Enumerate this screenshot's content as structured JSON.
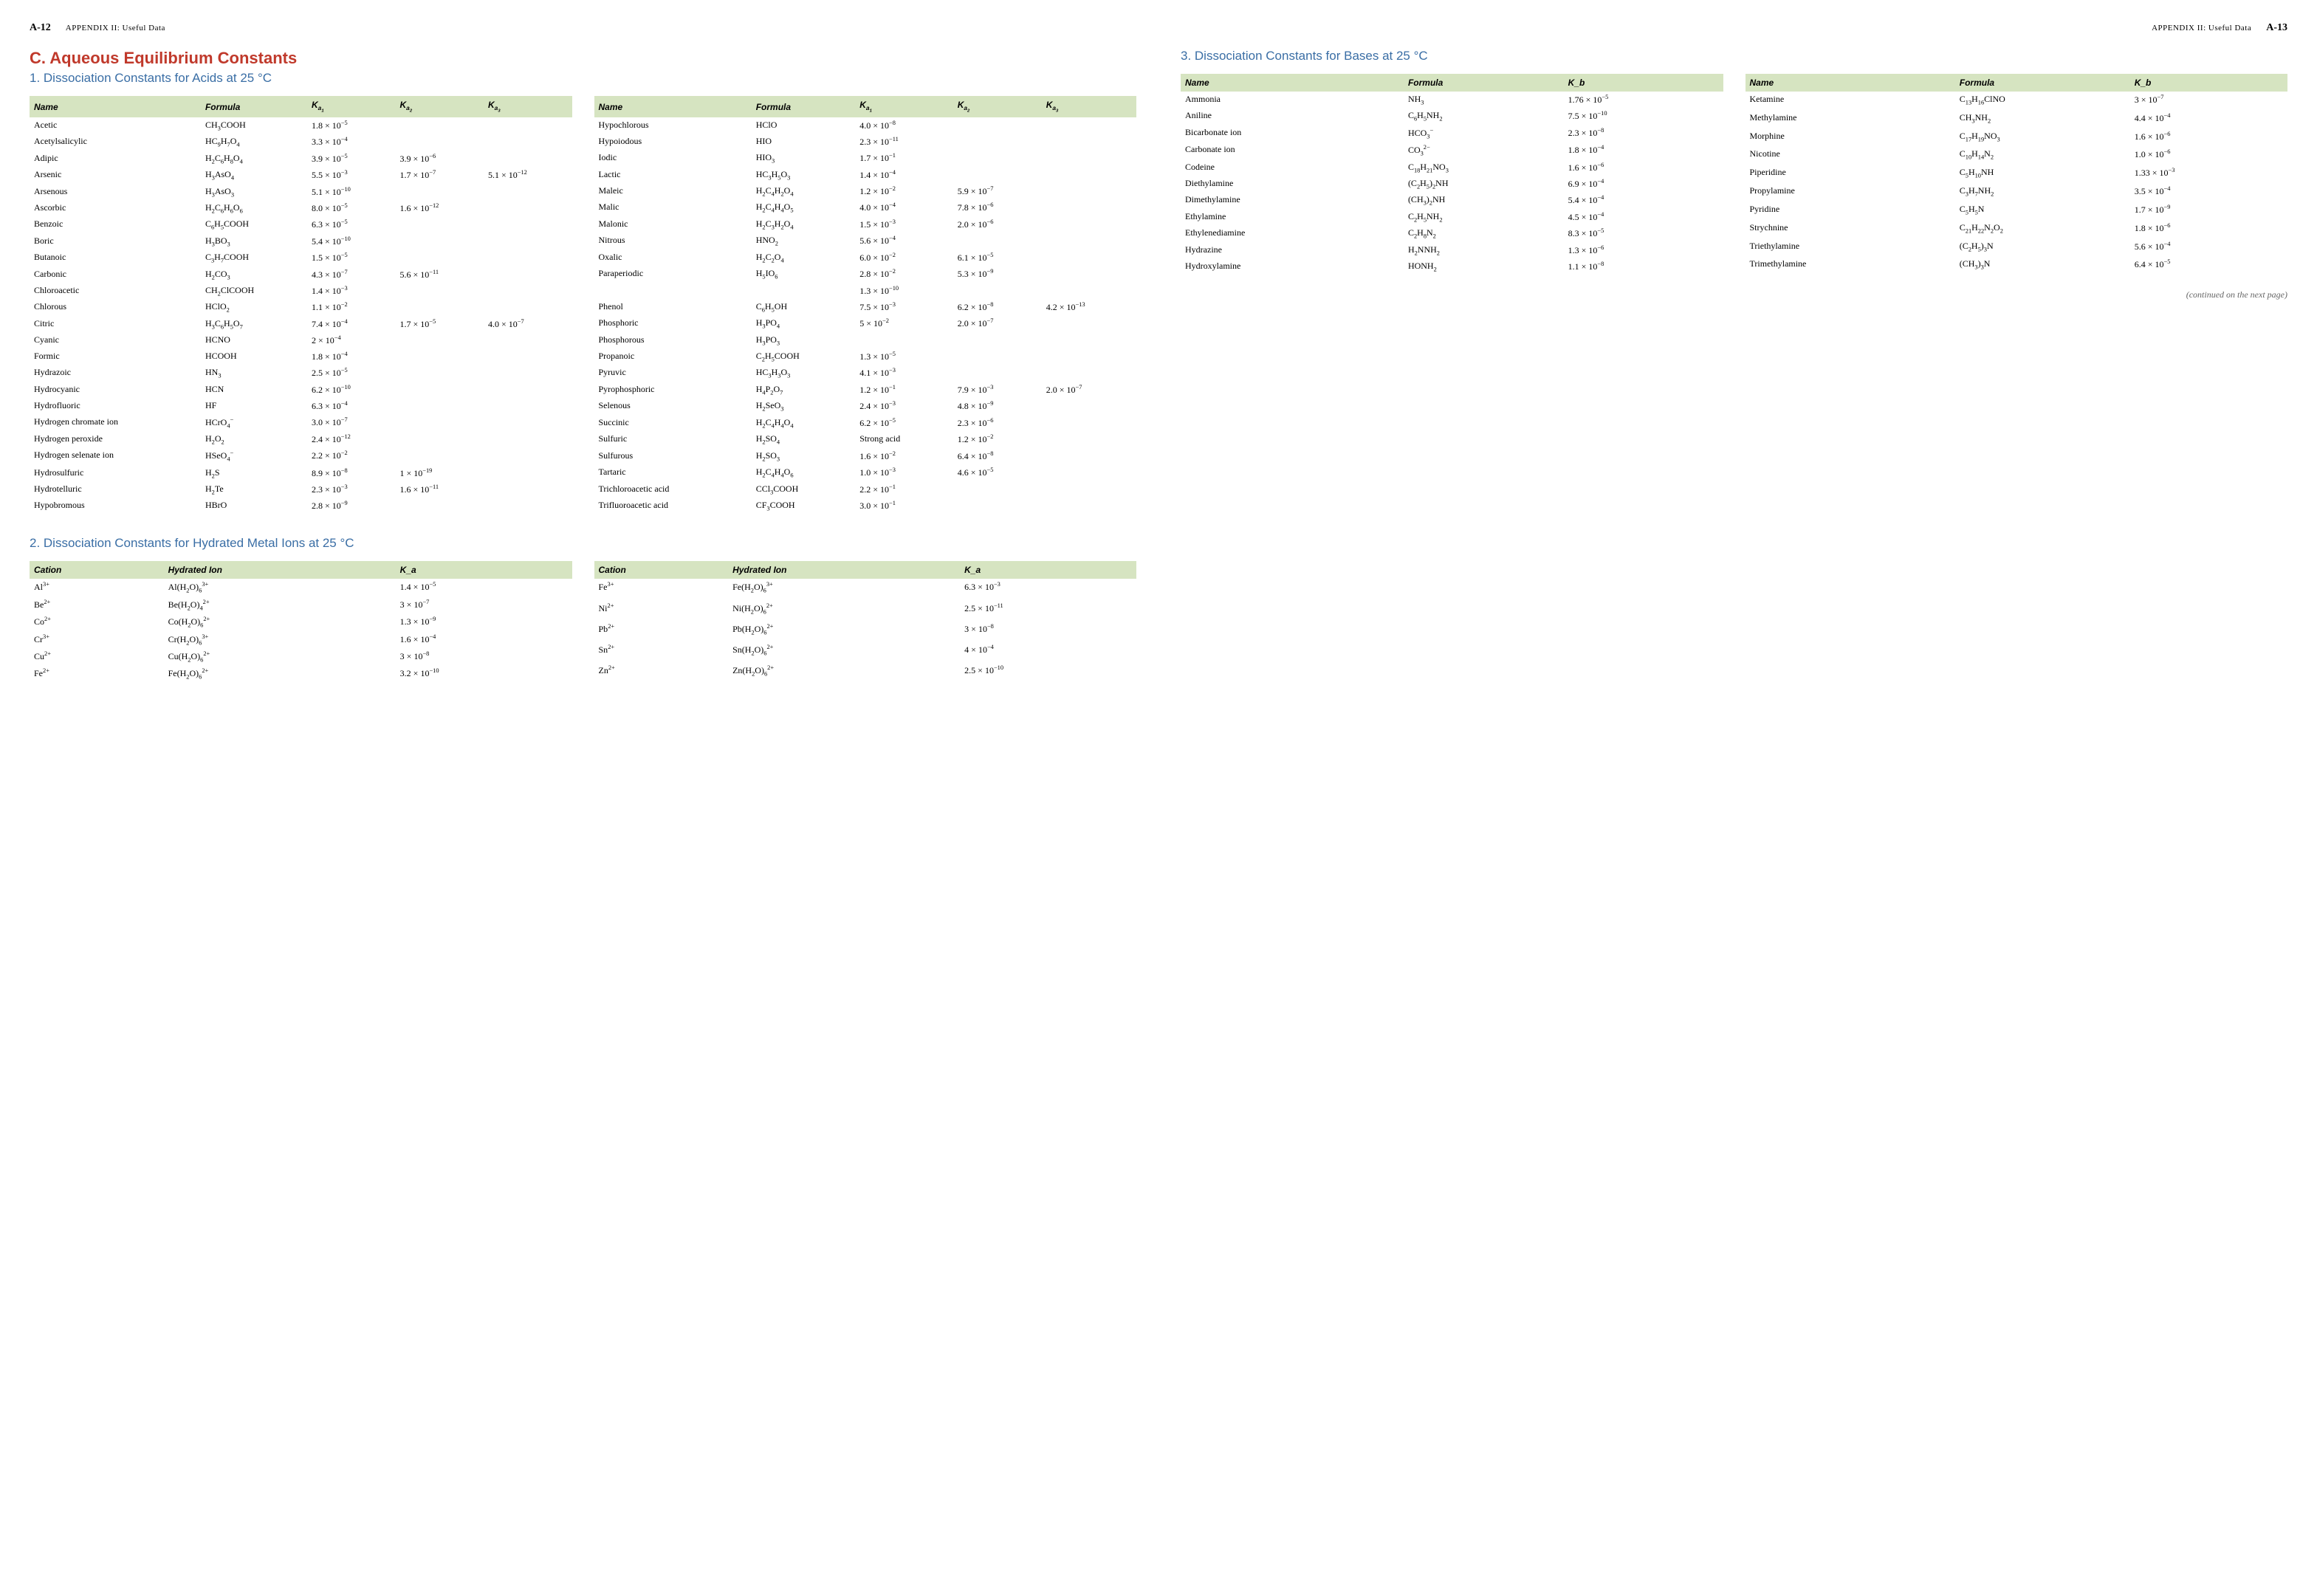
{
  "page_left": {
    "num": "A-12",
    "label": "APPENDIX II: Useful Data"
  },
  "page_right": {
    "num": "A-13",
    "label": "APPENDIX II: Useful Data"
  },
  "section_title": "C. Aqueous Equilibrium Constants",
  "sub1": "1. Dissociation Constants for Acids at 25 °C",
  "sub2": "2. Dissociation Constants for Hydrated Metal Ions at 25 °C",
  "sub3": "3. Dissociation Constants for Bases at 25 °C",
  "continued": "(continued on the next page)",
  "acids_headers": [
    "Name",
    "Formula",
    "K_{a_1}",
    "K_{a_2}",
    "K_{a_3}"
  ],
  "acids_left": [
    [
      "Acetic",
      "CH_3COOH",
      "1.8 × 10^{−5}",
      "",
      ""
    ],
    [
      "Acetylsalicylic",
      "HC_9H_7O_4",
      "3.3 × 10^{−4}",
      "",
      ""
    ],
    [
      "Adipic",
      "H_2C_6H_8O_4",
      "3.9 × 10^{−5}",
      "3.9 × 10^{−6}",
      ""
    ],
    [
      "Arsenic",
      "H_3AsO_4",
      "5.5 × 10^{−3}",
      "1.7 × 10^{−7}",
      "5.1 × 10^{−12}"
    ],
    [
      "Arsenous",
      "H_3AsO_3",
      "5.1 × 10^{−10}",
      "",
      ""
    ],
    [
      "Ascorbic",
      "H_2C_6H_6O_6",
      "8.0 × 10^{−5}",
      "1.6 × 10^{−12}",
      ""
    ],
    [
      "Benzoic",
      "C_6H_5COOH",
      "6.3 × 10^{−5}",
      "",
      ""
    ],
    [
      "Boric",
      "H_3BO_3",
      "5.4 × 10^{−10}",
      "",
      ""
    ],
    [
      "Butanoic",
      "C_3H_7COOH",
      "1.5 × 10^{−5}",
      "",
      ""
    ],
    [
      "Carbonic",
      "H_2CO_3",
      "4.3 × 10^{−7}",
      "5.6 × 10^{−11}",
      ""
    ],
    [
      "Chloroacetic",
      "CH_2ClCOOH",
      "1.4 × 10^{−3}",
      "",
      ""
    ],
    [
      "Chlorous",
      "HClO_2",
      "1.1 × 10^{−2}",
      "",
      ""
    ],
    [
      "Citric",
      "H_3C_6H_5O_7",
      "7.4 × 10^{−4}",
      "1.7 × 10^{−5}",
      "4.0 × 10^{−7}"
    ],
    [
      "Cyanic",
      "HCNO",
      "2 × 10^{−4}",
      "",
      ""
    ],
    [
      "Formic",
      "HCOOH",
      "1.8 × 10^{−4}",
      "",
      ""
    ],
    [
      "Hydrazoic",
      "HN_3",
      "2.5 × 10^{−5}",
      "",
      ""
    ],
    [
      "Hydrocyanic",
      "HCN",
      "6.2 × 10^{−10}",
      "",
      ""
    ],
    [
      "Hydrofluoric",
      "HF",
      "6.3 × 10^{−4}",
      "",
      ""
    ],
    [
      "Hydrogen chromate ion",
      "HCrO_4^{−}",
      "3.0 × 10^{−7}",
      "",
      ""
    ],
    [
      "Hydrogen peroxide",
      "H_2O_2",
      "2.4 × 10^{−12}",
      "",
      ""
    ],
    [
      "Hydrogen selenate ion",
      "HSeO_4^{−}",
      "2.2 × 10^{−2}",
      "",
      ""
    ],
    [
      "Hydrosulfuric",
      "H_2S",
      "8.9 × 10^{−8}",
      "1 × 10^{−19}",
      ""
    ],
    [
      "Hydrotelluric",
      "H_2Te",
      "2.3 × 10^{−3}",
      "1.6 × 10^{−11}",
      ""
    ],
    [
      "Hypobromous",
      "HBrO",
      "2.8 × 10^{−9}",
      "",
      ""
    ]
  ],
  "acids_right": [
    [
      "Hypochlorous",
      "HClO",
      "4.0 × 10^{−8}",
      "",
      ""
    ],
    [
      "Hypoiodous",
      "HIO",
      "2.3 × 10^{−11}",
      "",
      ""
    ],
    [
      "Iodic",
      "HIO_3",
      "1.7 × 10^{−1}",
      "",
      ""
    ],
    [
      "Lactic",
      "HC_3H_5O_3",
      "1.4 × 10^{−4}",
      "",
      ""
    ],
    [
      "Maleic",
      "H_2C_4H_2O_4",
      "1.2 × 10^{−2}",
      "5.9 × 10^{−7}",
      ""
    ],
    [
      "Malic",
      "H_2C_4H_4O_5",
      "4.0 × 10^{−4}",
      "7.8 × 10^{−6}",
      ""
    ],
    [
      "Malonic",
      "H_2C_3H_2O_4",
      "1.5 × 10^{−3}",
      "2.0 × 10^{−6}",
      ""
    ],
    [
      "Nitrous",
      "HNO_2",
      "5.6 × 10^{−4}",
      "",
      ""
    ],
    [
      "Oxalic",
      "H_2C_2O_4",
      "6.0 × 10^{−2}",
      "6.1 × 10^{−5}",
      ""
    ],
    [
      "Paraperiodic",
      "H_5IO_6",
      "2.8 × 10^{−2}",
      "5.3 × 10^{−9}",
      ""
    ],
    [
      "",
      "",
      "1.3 × 10^{−10}",
      "",
      ""
    ],
    [
      "Phenol",
      "C_6H_5OH",
      "7.5 × 10^{−3}",
      "6.2 × 10^{−8}",
      "4.2 × 10^{−13}"
    ],
    [
      "Phosphoric",
      "H_3PO_4",
      "5 × 10^{−2}",
      "2.0 × 10^{−7}",
      ""
    ],
    [
      "Phosphorous",
      "H_3PO_3",
      "",
      "",
      ""
    ],
    [
      "Propanoic",
      "C_2H_5COOH",
      "1.3 × 10^{−5}",
      "",
      ""
    ],
    [
      "Pyruvic",
      "HC_3H_3O_3",
      "4.1 × 10^{−3}",
      "",
      ""
    ],
    [
      "Pyrophosphoric",
      "H_4P_2O_7",
      "1.2 × 10^{−1}",
      "7.9 × 10^{−3}",
      "2.0 × 10^{−7}"
    ],
    [
      "Selenous",
      "H_2SeO_3",
      "2.4 × 10^{−3}",
      "4.8 × 10^{−9}",
      ""
    ],
    [
      "Succinic",
      "H_2C_4H_4O_4",
      "6.2 × 10^{−5}",
      "2.3 × 10^{−6}",
      ""
    ],
    [
      "Sulfuric",
      "H_2SO_4",
      "Strong acid",
      "1.2 × 10^{−2}",
      ""
    ],
    [
      "Sulfurous",
      "H_2SO_3",
      "1.6 × 10^{−2}",
      "6.4 × 10^{−8}",
      ""
    ],
    [
      "Tartaric",
      "H_2C_4H_4O_6",
      "1.0 × 10^{−3}",
      "4.6 × 10^{−5}",
      ""
    ],
    [
      "Trichloroacetic acid",
      "CCl_3COOH",
      "2.2 × 10^{−1}",
      "",
      ""
    ],
    [
      "Trifluoroacetic acid",
      "CF_3COOH",
      "3.0 × 10^{−1}",
      "",
      ""
    ]
  ],
  "metal_headers": [
    "Cation",
    "Hydrated Ion",
    "K_a"
  ],
  "metal_left": [
    [
      "Al^{3+}",
      "Al(H_2O)_6^{3+}",
      "1.4 × 10^{−5}"
    ],
    [
      "Be^{2+}",
      "Be(H_2O)_4^{2+}",
      "3 × 10^{−7}"
    ],
    [
      "Co^{2+}",
      "Co(H_2O)_6^{2+}",
      "1.3 × 10^{−9}"
    ],
    [
      "Cr^{3+}",
      "Cr(H_2O)_6^{3+}",
      "1.6 × 10^{−4}"
    ],
    [
      "Cu^{2+}",
      "Cu(H_2O)_6^{2+}",
      "3 × 10^{−8}"
    ],
    [
      "Fe^{2+}",
      "Fe(H_2O)_6^{2+}",
      "3.2 × 10^{−10}"
    ]
  ],
  "metal_right": [
    [
      "Fe^{3+}",
      "Fe(H_2O)_6^{3+}",
      "6.3 × 10^{−3}"
    ],
    [
      "Ni^{2+}",
      "Ni(H_2O)_6^{2+}",
      "2.5 × 10^{−11}"
    ],
    [
      "Pb^{2+}",
      "Pb(H_2O)_6^{2+}",
      "3 × 10^{−8}"
    ],
    [
      "Sn^{2+}",
      "Sn(H_2O)_6^{2+}",
      "4 × 10^{−4}"
    ],
    [
      "Zn^{2+}",
      "Zn(H_2O)_6^{2+}",
      "2.5 × 10^{−10}"
    ]
  ],
  "bases_headers": [
    "Name",
    "Formula",
    "K_b"
  ],
  "bases_left": [
    [
      "Ammonia",
      "NH_3",
      "1.76 × 10^{−5}"
    ],
    [
      "Aniline",
      "C_6H_5NH_2",
      "7.5 × 10^{−10}"
    ],
    [
      "Bicarbonate ion",
      "HCO_3^{−}",
      "2.3 × 10^{−8}"
    ],
    [
      "Carbonate ion",
      "CO_3^{2−}",
      "1.8 × 10^{−4}"
    ],
    [
      "Codeine",
      "C_{18}H_{21}NO_3",
      "1.6 × 10^{−6}"
    ],
    [
      "Diethylamine",
      "(C_2H_5)_2NH",
      "6.9 × 10^{−4}"
    ],
    [
      "Dimethylamine",
      "(CH_3)_2NH",
      "5.4 × 10^{−4}"
    ],
    [
      "Ethylamine",
      "C_2H_5NH_2",
      "4.5 × 10^{−4}"
    ],
    [
      "Ethylenediamine",
      "C_2H_8N_2",
      "8.3 × 10^{−5}"
    ],
    [
      "Hydrazine",
      "H_2NNH_2",
      "1.3 × 10^{−6}"
    ],
    [
      "Hydroxylamine",
      "HONH_2",
      "1.1 × 10^{−8}"
    ]
  ],
  "bases_right": [
    [
      "Ketamine",
      "C_{13}H_{16}ClNO",
      "3 × 10^{−7}"
    ],
    [
      "Methylamine",
      "CH_3NH_2",
      "4.4 × 10^{−4}"
    ],
    [
      "Morphine",
      "C_{17}H_{19}NO_3",
      "1.6 × 10^{−6}"
    ],
    [
      "Nicotine",
      "C_{10}H_{14}N_2",
      "1.0 × 10^{−6}"
    ],
    [
      "Piperidine",
      "C_5H_{10}NH",
      "1.33 × 10^{−3}"
    ],
    [
      "Propylamine",
      "C_3H_7NH_2",
      "3.5 × 10^{−4}"
    ],
    [
      "Pyridine",
      "C_5H_5N",
      "1.7 × 10^{−9}"
    ],
    [
      "Strychnine",
      "C_{21}H_{22}N_2O_2",
      "1.8 × 10^{−6}"
    ],
    [
      "Triethylamine",
      "(C_2H_5)_3N",
      "5.6 × 10^{−4}"
    ],
    [
      "Trimethylamine",
      "(CH_3)_3N",
      "6.4 × 10^{−5}"
    ]
  ]
}
